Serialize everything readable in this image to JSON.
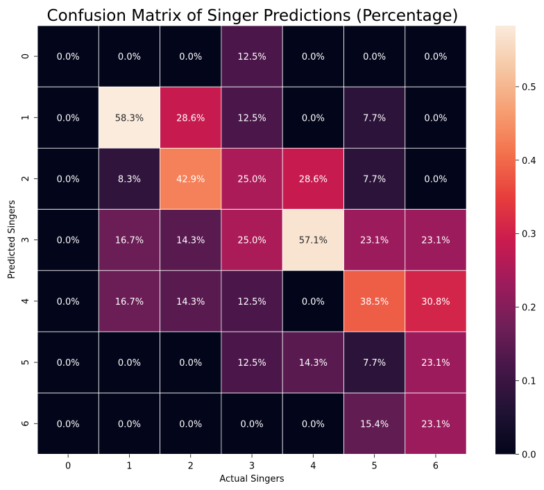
{
  "chart_data": {
    "type": "heatmap",
    "title": "Confusion Matrix of Singer Predictions (Percentage)",
    "xlabel": "Actual Singers",
    "ylabel": "Predicted Singers",
    "x_categories": [
      "0",
      "1",
      "2",
      "3",
      "4",
      "5",
      "6"
    ],
    "y_categories": [
      "0",
      "1",
      "2",
      "3",
      "4",
      "5",
      "6"
    ],
    "values": [
      [
        0.0,
        0.0,
        0.0,
        0.125,
        0.0,
        0.0,
        0.0
      ],
      [
        0.0,
        0.583,
        0.286,
        0.125,
        0.0,
        0.077,
        0.0
      ],
      [
        0.0,
        0.083,
        0.429,
        0.25,
        0.286,
        0.077,
        0.0
      ],
      [
        0.0,
        0.167,
        0.143,
        0.25,
        0.571,
        0.231,
        0.231
      ],
      [
        0.0,
        0.167,
        0.143,
        0.125,
        0.0,
        0.385,
        0.308
      ],
      [
        0.0,
        0.0,
        0.0,
        0.125,
        0.143,
        0.077,
        0.231
      ],
      [
        0.0,
        0.0,
        0.0,
        0.0,
        0.0,
        0.154,
        0.231
      ]
    ],
    "annotations": [
      [
        "0.0%",
        "0.0%",
        "0.0%",
        "12.5%",
        "0.0%",
        "0.0%",
        "0.0%"
      ],
      [
        "0.0%",
        "58.3%",
        "28.6%",
        "12.5%",
        "0.0%",
        "7.7%",
        "0.0%"
      ],
      [
        "0.0%",
        "8.3%",
        "42.9%",
        "25.0%",
        "28.6%",
        "7.7%",
        "0.0%"
      ],
      [
        "0.0%",
        "16.7%",
        "14.3%",
        "25.0%",
        "57.1%",
        "23.1%",
        "23.1%"
      ],
      [
        "0.0%",
        "16.7%",
        "14.3%",
        "12.5%",
        "0.0%",
        "38.5%",
        "30.8%"
      ],
      [
        "0.0%",
        "0.0%",
        "0.0%",
        "12.5%",
        "14.3%",
        "7.7%",
        "23.1%"
      ],
      [
        "0.0%",
        "0.0%",
        "0.0%",
        "0.0%",
        "0.0%",
        "15.4%",
        "23.1%"
      ]
    ],
    "colorbar": {
      "min": 0.0,
      "max": 0.583,
      "ticks": [
        0.0,
        0.1,
        0.2,
        0.3,
        0.4,
        0.5
      ],
      "tick_labels": [
        "0.0",
        "0.1",
        "0.2",
        "0.3",
        "0.4",
        "0.5"
      ]
    },
    "colormap": "rocket",
    "grid": false,
    "legend": "colorbar-right"
  }
}
